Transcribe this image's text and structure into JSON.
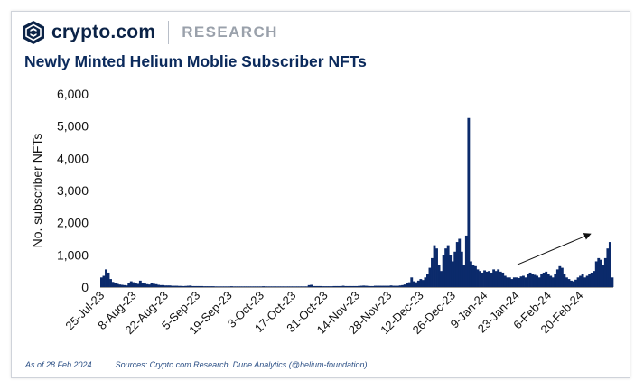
{
  "brand": {
    "name": "crypto.com",
    "section": "RESEARCH"
  },
  "footer": {
    "as_of": "As of 28 Feb 2024",
    "sources": "Sources: Crypto.com Research, Dune Analytics (@helium-foundation)"
  },
  "colors": {
    "bar": "#0b2a6b",
    "title": "#0b2a5c",
    "brand": "#0b2347",
    "accent": "#9aa1ab"
  },
  "chart_data": {
    "type": "bar",
    "title": "Newly Minted Helium Moblie Subscriber NFTs",
    "ylabel": "No. subscriber NFTs",
    "xlabel": "",
    "ylim": [
      0,
      6000
    ],
    "yticks": [
      "0",
      "1,000",
      "2,000",
      "3,000",
      "4,000",
      "5,000",
      "6,000"
    ],
    "ytick_values": [
      0,
      1000,
      2000,
      3000,
      4000,
      5000,
      6000
    ],
    "xticks": [
      "25-Jul-23",
      "8-Aug-23",
      "22-Aug-23",
      "5-Sep-23",
      "19-Sep-23",
      "3-Oct-23",
      "17-Oct-23",
      "31-Oct-23",
      "14-Nov-23",
      "28-Nov-23",
      "12-Dec-23",
      "26-Dec-23",
      "9-Jan-24",
      "23-Jan-24",
      "6-Feb-24",
      "20-Feb-24"
    ],
    "start_date": "2023-07-25",
    "days": 219,
    "annotation": "upward trend arrow",
    "series": [
      {
        "values": [
          300,
          350,
          550,
          450,
          250,
          160,
          120,
          100,
          80,
          70,
          60,
          50,
          120,
          180,
          150,
          120,
          100,
          200,
          140,
          110,
          90,
          80,
          120,
          100,
          90,
          70,
          60,
          60,
          50,
          50,
          50,
          40,
          40,
          40,
          35,
          35,
          30,
          35,
          40,
          45,
          30,
          30,
          30,
          30,
          30,
          25,
          25,
          25,
          25,
          25,
          20,
          20,
          20,
          20,
          20,
          20,
          20,
          25,
          20,
          20,
          20,
          20,
          20,
          20,
          20,
          20,
          20,
          20,
          20,
          20,
          20,
          25,
          20,
          20,
          20,
          20,
          20,
          20,
          20,
          20,
          20,
          20,
          20,
          20,
          20,
          20,
          20,
          20,
          20,
          20,
          20,
          60,
          70,
          30,
          30,
          30,
          30,
          25,
          25,
          25,
          25,
          25,
          30,
          30,
          30,
          30,
          40,
          30,
          30,
          30,
          30,
          30,
          30,
          35,
          40,
          45,
          40,
          35,
          30,
          30,
          40,
          40,
          40,
          40,
          40,
          40,
          40,
          50,
          40,
          40,
          40,
          50,
          60,
          80,
          120,
          150,
          300,
          180,
          150,
          200,
          250,
          220,
          300,
          400,
          600,
          900,
          1300,
          1200,
          700,
          500,
          1000,
          1200,
          1300,
          1000,
          800,
          1100,
          1400,
          1500,
          1100,
          700,
          1600,
          5250,
          800,
          700,
          650,
          550,
          500,
          450,
          520,
          480,
          500,
          450,
          550,
          500,
          550,
          480,
          450,
          350,
          300,
          300,
          250,
          300,
          300,
          280,
          330,
          350,
          300,
          400,
          450,
          420,
          380,
          350,
          300,
          400,
          450,
          480,
          420,
          350,
          300,
          400,
          550,
          650,
          600,
          400,
          300,
          250,
          200,
          180,
          230,
          300,
          350,
          400,
          300,
          350,
          420,
          450,
          500,
          800,
          900,
          850,
          700,
          900,
          1200,
          1400,
          300
        ]
      }
    ]
  }
}
